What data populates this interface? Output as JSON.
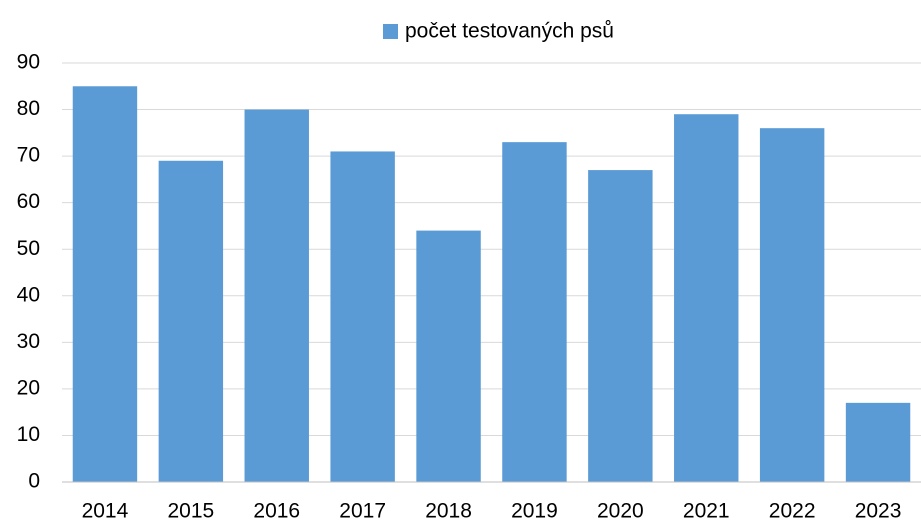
{
  "chart_data": {
    "type": "bar",
    "legend": "počet testovaných psů",
    "categories": [
      "2014",
      "2015",
      "2016",
      "2017",
      "2018",
      "2019",
      "2020",
      "2021",
      "2022",
      "2023"
    ],
    "values": [
      85,
      69,
      80,
      71,
      54,
      73,
      67,
      79,
      76,
      17
    ],
    "color": "#5b9bd5",
    "ylim": [
      0,
      90
    ],
    "yticks": [
      0,
      10,
      20,
      30,
      40,
      50,
      60,
      70,
      80,
      90
    ],
    "grid": true,
    "legend_position": "top"
  }
}
